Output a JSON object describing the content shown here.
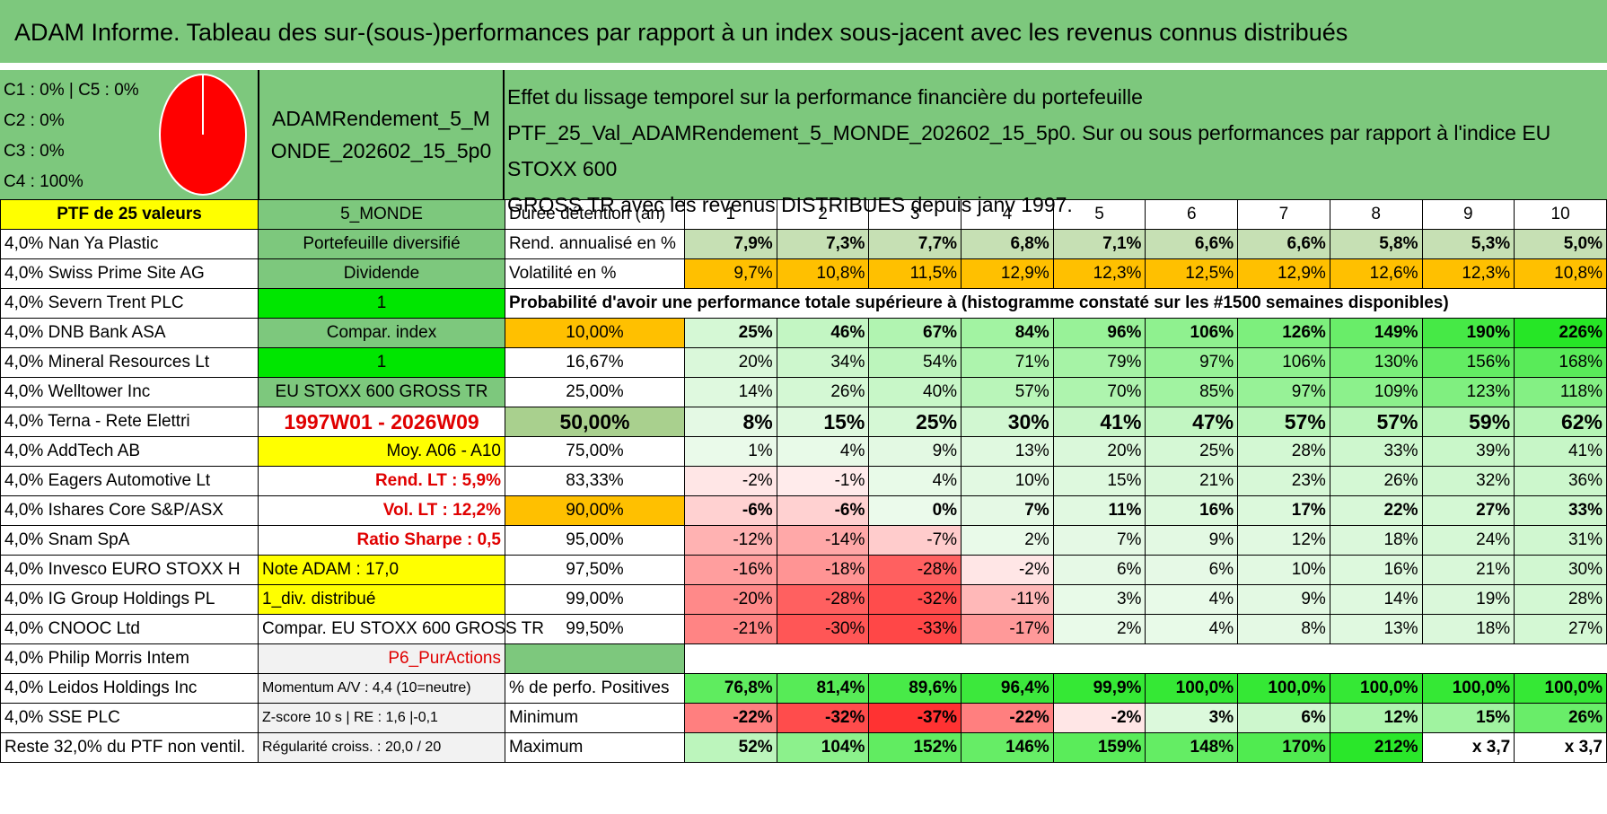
{
  "title": "ADAM Informe. Tableau des sur-(sous-)performances par rapport à un index sous-jacent avec les revenus connus distribués",
  "pie": {
    "legend": [
      "C1 : 0% | C5 : 0%",
      "C2 : 0%",
      "C3 : 0%",
      "C4 : 100%"
    ],
    "fill": "#ff0000"
  },
  "portfolio_name": "ADAMRendement_5_MONDE_202602_15_5p0",
  "description": [
    "Effet du lissage temporel sur la performance financière du portefeuille",
    "PTF_25_Val_ADAMRendement_5_MONDE_202602_15_5p0. Sur ou sous performances par rapport à l'indice EU STOXX 600",
    "GROSS TR avec les revenus DISTRIBUES depuis janv 1997."
  ],
  "header_row": {
    "ptf": "PTF de 25 valeurs",
    "zone": "5_MONDE",
    "label": "Durée détention (an)",
    "years": [
      "1",
      "2",
      "3",
      "4",
      "5",
      "6",
      "7",
      "8",
      "9",
      "10"
    ]
  },
  "rows": [
    {
      "stock": "4,0% Nan Ya Plastic",
      "info": "Portefeuille diversifié",
      "label": "Rend. annualisé en %",
      "values": [
        "7,9%",
        "7,3%",
        "7,7%",
        "6,8%",
        "7,1%",
        "6,6%",
        "6,6%",
        "5,8%",
        "5,3%",
        "5,0%"
      ]
    },
    {
      "stock": "4,0% Swiss Prime Site AG",
      "info": "Dividende",
      "label": "Volatilité en %",
      "values": [
        "9,7%",
        "10,8%",
        "11,5%",
        "12,9%",
        "12,3%",
        "12,5%",
        "12,9%",
        "12,6%",
        "12,3%",
        "10,8%"
      ]
    },
    {
      "stock": "4,0% Severn Trent PLC",
      "info": "1",
      "label": "Probabilité d'avoir une performance totale supérieure à (histogramme constaté sur les #1500 semaines disponibles)",
      "values": []
    },
    {
      "stock": "4,0% DNB Bank ASA",
      "info": "Compar. index",
      "label": "10,00%",
      "values": [
        "25%",
        "46%",
        "67%",
        "84%",
        "96%",
        "106%",
        "126%",
        "149%",
        "190%",
        "226%"
      ]
    },
    {
      "stock": "4,0% Mineral Resources Lt",
      "info": "1",
      "label": "16,67%",
      "values": [
        "20%",
        "34%",
        "54%",
        "71%",
        "79%",
        "97%",
        "106%",
        "130%",
        "156%",
        "168%"
      ]
    },
    {
      "stock": "4,0% Welltower Inc",
      "info": "EU STOXX 600 GROSS TR",
      "label": "25,00%",
      "values": [
        "14%",
        "26%",
        "40%",
        "57%",
        "70%",
        "85%",
        "97%",
        "109%",
        "123%",
        "118%"
      ]
    },
    {
      "stock": "4,0% Terna - Rete Elettri",
      "info": "1997W01 - 2026W09",
      "label": "50,00%",
      "values": [
        "8%",
        "15%",
        "25%",
        "30%",
        "41%",
        "47%",
        "57%",
        "57%",
        "59%",
        "62%"
      ]
    },
    {
      "stock": "4,0% AddTech AB",
      "info": "Moy. A06 - A10",
      "label": "75,00%",
      "values": [
        "1%",
        "4%",
        "9%",
        "13%",
        "20%",
        "25%",
        "28%",
        "33%",
        "39%",
        "41%"
      ]
    },
    {
      "stock": "4,0% Eagers Automotive Lt",
      "info": "Rend. LT : 5,9%",
      "label": "83,33%",
      "values": [
        "-2%",
        "-1%",
        "4%",
        "10%",
        "15%",
        "21%",
        "23%",
        "26%",
        "32%",
        "36%"
      ]
    },
    {
      "stock": "4,0% Ishares Core S&P/ASX",
      "info": "Vol. LT : 12,2%",
      "label": "90,00%",
      "values": [
        "-6%",
        "-6%",
        "0%",
        "7%",
        "11%",
        "16%",
        "17%",
        "22%",
        "27%",
        "33%"
      ]
    },
    {
      "stock": "4,0% Snam SpA",
      "info": "Ratio Sharpe : 0,5",
      "label": "95,00%",
      "values": [
        "-12%",
        "-14%",
        "-7%",
        "2%",
        "7%",
        "9%",
        "12%",
        "18%",
        "24%",
        "31%"
      ]
    },
    {
      "stock": "4,0% Invesco EURO STOXX H",
      "info": "Note ADAM : 17,0",
      "label": "97,50%",
      "values": [
        "-16%",
        "-18%",
        "-28%",
        "-2%",
        "6%",
        "6%",
        "10%",
        "16%",
        "21%",
        "30%"
      ]
    },
    {
      "stock": "4,0% IG Group Holdings PL",
      "info": "1_div. distribué",
      "label": "99,00%",
      "values": [
        "-20%",
        "-28%",
        "-32%",
        "-11%",
        "3%",
        "4%",
        "9%",
        "14%",
        "19%",
        "28%"
      ]
    },
    {
      "stock": "4,0% CNOOC Ltd",
      "info": "Compar. EU STOXX 600 GROSS TR",
      "label": "99,50%",
      "values": [
        "-21%",
        "-30%",
        "-33%",
        "-17%",
        "2%",
        "4%",
        "8%",
        "13%",
        "18%",
        "27%"
      ]
    },
    {
      "stock": "4,0% Philip Morris Intem",
      "info": "P6_PurActions",
      "label": "",
      "values": []
    },
    {
      "stock": "4,0% Leidos Holdings Inc",
      "info": "Momentum A/V : 4,4 (10=neutre)",
      "label": "% de perfo. Positives",
      "values": [
        "76,8%",
        "81,4%",
        "89,6%",
        "96,4%",
        "99,9%",
        "100,0%",
        "100,0%",
        "100,0%",
        "100,0%",
        "100,0%"
      ]
    },
    {
      "stock": "4,0% SSE PLC",
      "info": "Z-score 10 s | RE : 1,6 |-0,1",
      "label": "Minimum",
      "values": [
        "-22%",
        "-32%",
        "-37%",
        "-22%",
        "-2%",
        "3%",
        "6%",
        "12%",
        "15%",
        "26%"
      ]
    },
    {
      "stock": "Reste 32,0% du PTF non ventil.",
      "info": "Régularité croiss. : 20,0 / 20",
      "label": "Maximum",
      "values": [
        "52%",
        "104%",
        "152%",
        "146%",
        "159%",
        "148%",
        "170%",
        "212%",
        "x 3,7",
        "x 3,7"
      ]
    }
  ]
}
